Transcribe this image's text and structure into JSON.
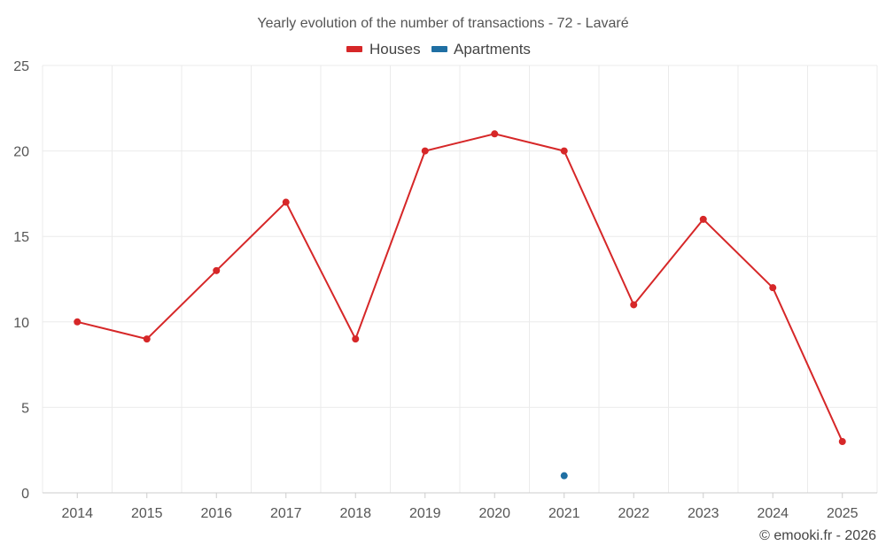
{
  "chart_data": {
    "type": "line",
    "title": "Yearly evolution of the number of transactions - 72 - Lavaré",
    "categories": [
      "2014",
      "2015",
      "2016",
      "2017",
      "2018",
      "2019",
      "2020",
      "2021",
      "2022",
      "2023",
      "2024",
      "2025"
    ],
    "series": [
      {
        "name": "Houses",
        "color": "#d62728",
        "values": [
          10,
          9,
          13,
          17,
          9,
          20,
          21,
          20,
          11,
          16,
          12,
          3
        ]
      },
      {
        "name": "Apartments",
        "color": "#1f6fa3",
        "values": [
          null,
          null,
          null,
          null,
          null,
          null,
          null,
          1,
          null,
          null,
          null,
          null
        ]
      }
    ],
    "yticks": [
      0,
      5,
      10,
      15,
      20,
      25
    ],
    "ylim": [
      0,
      25
    ],
    "xlabel": "",
    "ylabel": "",
    "grid": true,
    "legend_position": "top-center"
  },
  "credit": "© emooki.fr - 2026"
}
